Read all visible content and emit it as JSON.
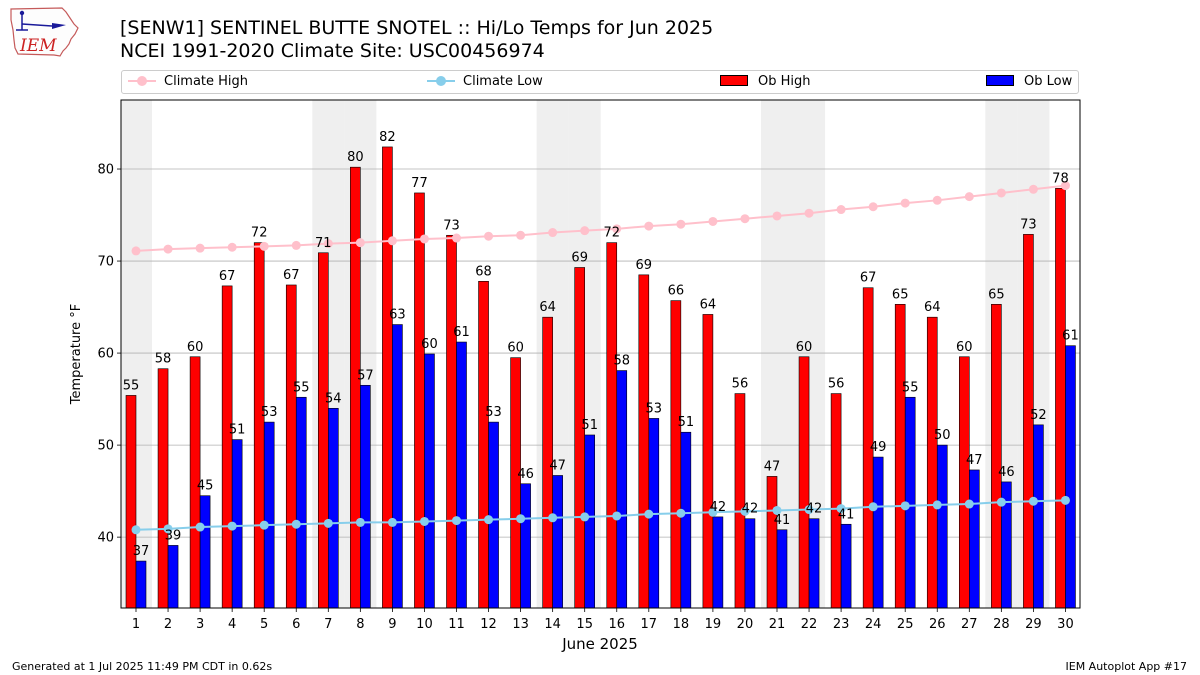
{
  "header": {
    "logo_text": "IEM",
    "title": "[SENW1] SENTINEL BUTTE SNOTEL :: Hi/Lo Temps for Jun 2025",
    "subtitle": "NCEI 1991-2020 Climate Site: USC00456974"
  },
  "legend": {
    "climate_high": "Climate High",
    "climate_low": "Climate Low",
    "ob_high": "Ob High",
    "ob_low": "Ob Low"
  },
  "footer": {
    "generated": "Generated at 1 Jul 2025 11:49 PM CDT in 0.62s",
    "app": "IEM Autoplot App #17"
  },
  "colors": {
    "ob_high": "#ff0000",
    "ob_low": "#0000ff",
    "climate_high": "#ffc0cb",
    "climate_low": "#87ceeb",
    "weekend_band": "#efefef",
    "grid": "#b0b0b0"
  },
  "chart_data": {
    "type": "bar",
    "xlabel": "June 2025",
    "ylabel": "Temperature °F",
    "ylim": [
      32.3,
      87.5
    ],
    "yticks": [
      40,
      50,
      60,
      70,
      80
    ],
    "categories": [
      1,
      2,
      3,
      4,
      5,
      6,
      7,
      8,
      9,
      10,
      11,
      12,
      13,
      14,
      15,
      16,
      17,
      18,
      19,
      20,
      21,
      22,
      23,
      24,
      25,
      26,
      27,
      28,
      29,
      30
    ],
    "weekend_days": [
      1,
      7,
      8,
      14,
      15,
      21,
      22,
      28,
      29
    ],
    "grid": "horizontal",
    "legend_position": "top",
    "series": [
      {
        "name": "Ob High",
        "kind": "bar",
        "values": [
          55.4,
          58.3,
          59.6,
          67.3,
          72.0,
          67.4,
          70.9,
          80.2,
          82.4,
          77.4,
          72.8,
          67.8,
          59.5,
          63.9,
          69.3,
          72.0,
          68.5,
          65.7,
          64.2,
          55.6,
          46.6,
          59.6,
          55.6,
          67.1,
          65.3,
          63.9,
          59.6,
          65.3,
          72.9,
          77.9
        ]
      },
      {
        "name": "Ob Low",
        "kind": "bar",
        "values": [
          37.4,
          39.1,
          44.5,
          50.6,
          52.5,
          55.2,
          54.0,
          56.5,
          63.1,
          59.9,
          61.2,
          52.5,
          45.8,
          46.7,
          51.1,
          58.1,
          52.9,
          51.4,
          42.2,
          42.0,
          40.8,
          42.0,
          41.4,
          48.7,
          55.2,
          50.0,
          47.3,
          46.0,
          52.2,
          60.8
        ]
      },
      {
        "name": "Climate High",
        "kind": "line",
        "values": [
          71.1,
          71.3,
          71.4,
          71.5,
          71.6,
          71.7,
          71.9,
          72.0,
          72.2,
          72.4,
          72.5,
          72.7,
          72.8,
          73.1,
          73.3,
          73.5,
          73.8,
          74.0,
          74.3,
          74.6,
          74.9,
          75.2,
          75.6,
          75.9,
          76.3,
          76.6,
          77.0,
          77.4,
          77.8,
          78.2
        ]
      },
      {
        "name": "Climate Low",
        "kind": "line",
        "values": [
          40.8,
          40.9,
          41.1,
          41.2,
          41.3,
          41.4,
          41.5,
          41.6,
          41.6,
          41.7,
          41.8,
          41.9,
          42.0,
          42.1,
          42.2,
          42.3,
          42.5,
          42.6,
          42.7,
          42.8,
          42.9,
          43.0,
          43.1,
          43.3,
          43.4,
          43.5,
          43.6,
          43.8,
          43.9,
          44.0
        ]
      }
    ]
  }
}
